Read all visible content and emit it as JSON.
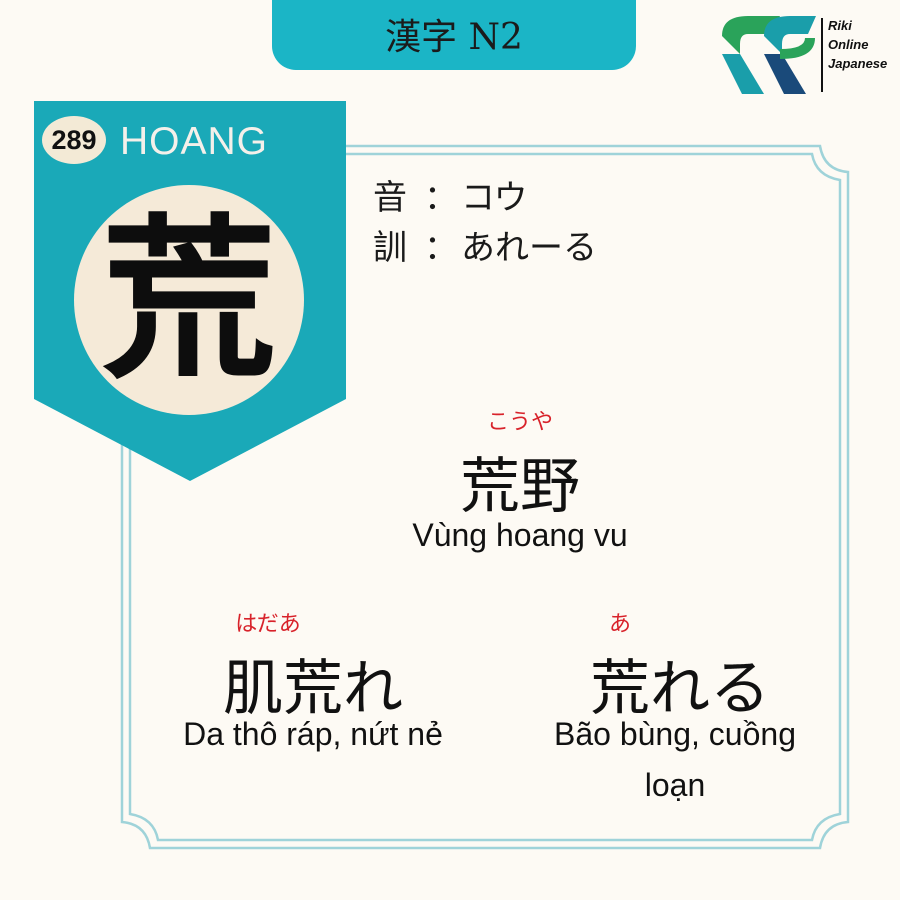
{
  "header": {
    "title": "漢字 N2"
  },
  "logo": {
    "line1": "Riki",
    "line2": "Online",
    "line3": "Japanese",
    "color_green": "#2aa35a",
    "color_teal": "#1a9eaa",
    "color_dark": "#1a4a7a"
  },
  "card": {
    "number": "289",
    "han_viet": "HOANG",
    "kanji": "荒",
    "accent_color": "#1aa9b8"
  },
  "readings": {
    "on": {
      "label": "音",
      "colon": "：",
      "value": "コウ"
    },
    "kun": {
      "label": "訓",
      "colon": "：",
      "value": "あれーる"
    }
  },
  "vocab": [
    {
      "furigana": "こうや",
      "word": "荒野",
      "meaning": "Vùng hoang vu"
    },
    {
      "furigana": "はだあ",
      "word": "肌荒れ",
      "meaning": "Da thô ráp, nứt nẻ"
    },
    {
      "furigana": "あ",
      "word": "荒れる",
      "meaning_line1": "Bão bùng, cuồng",
      "meaning_line2": "loạn"
    }
  ]
}
